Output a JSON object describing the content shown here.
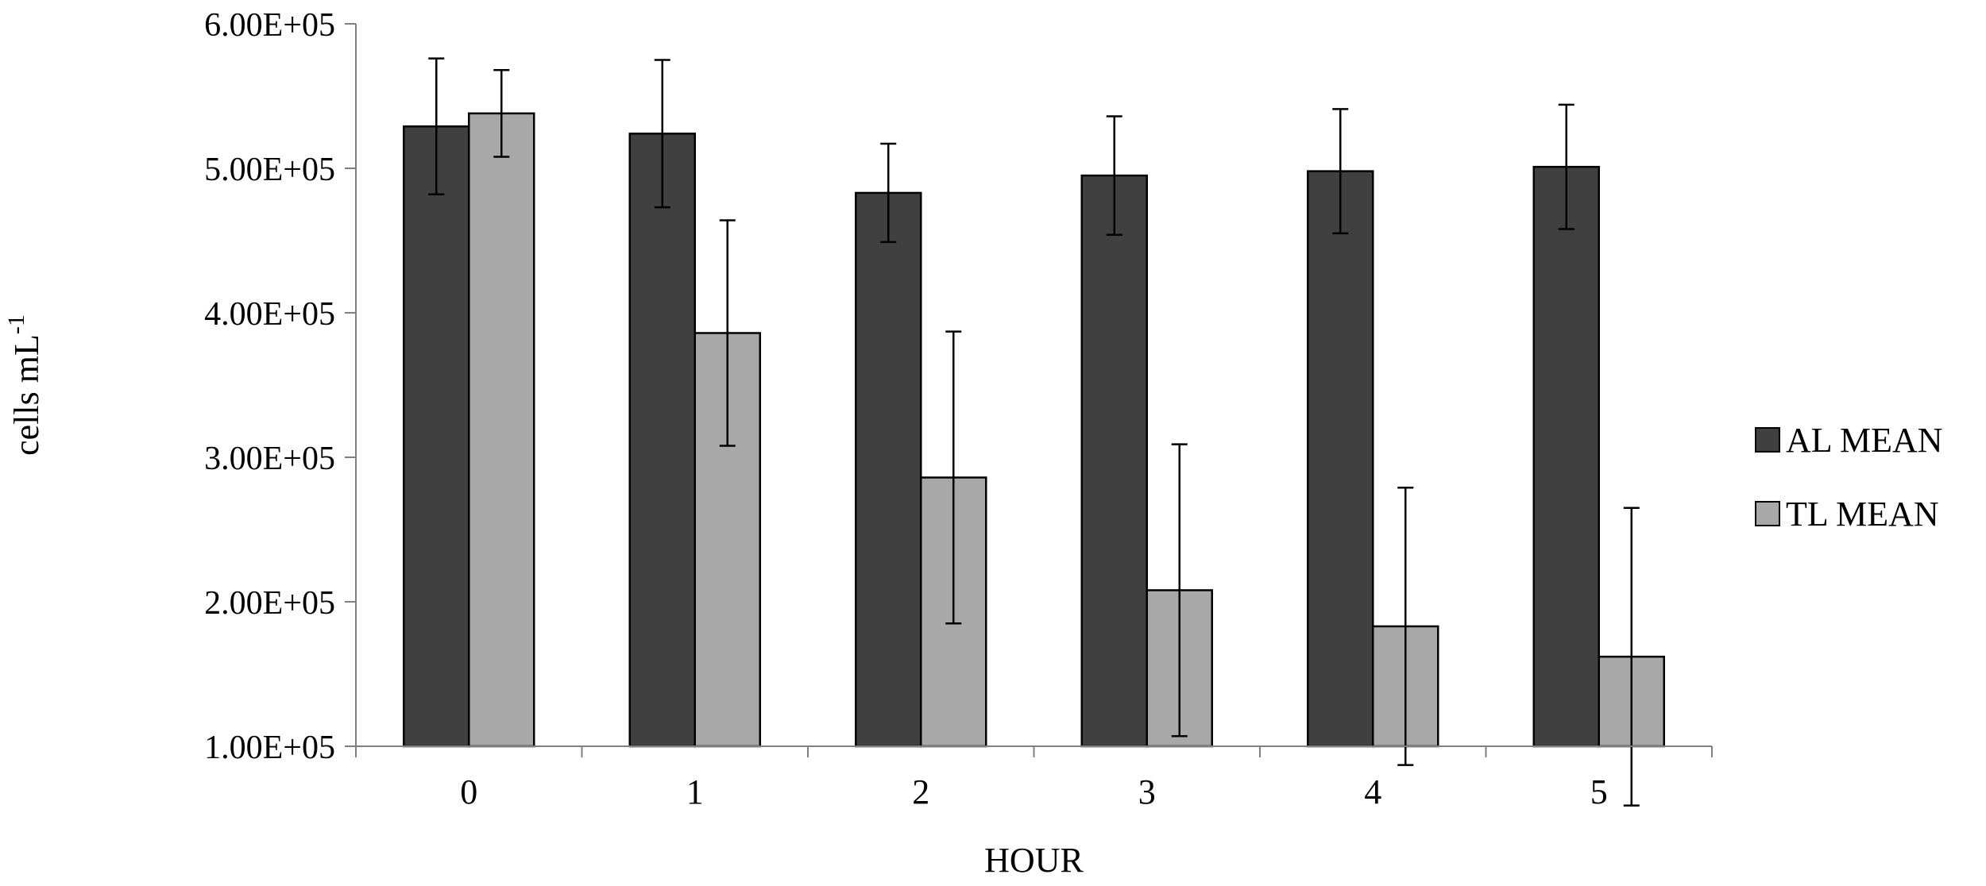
{
  "chart_data": {
    "type": "bar",
    "xlabel": "HOUR",
    "ylabel": "cells mL",
    "ylabel_superscript": "-1",
    "categories": [
      "0",
      "1",
      "2",
      "3",
      "4",
      "5"
    ],
    "ylim": [
      100000,
      600000
    ],
    "yticks": [
      100000,
      200000,
      300000,
      400000,
      500000,
      600000
    ],
    "ytick_labels": [
      "1.00E+05",
      "2.00E+05",
      "3.00E+05",
      "4.00E+05",
      "5.00E+05",
      "6.00E+05"
    ],
    "grid": false,
    "legend_position": "right",
    "series": [
      {
        "name": "AL MEAN",
        "color": "#404040",
        "values": [
          529000,
          524000,
          483000,
          495000,
          498000,
          501000
        ],
        "error": [
          47000,
          51000,
          34000,
          41000,
          43000,
          43000
        ]
      },
      {
        "name": "TL MEAN",
        "color": "#a8a8a8",
        "values": [
          538000,
          386000,
          286000,
          208000,
          183000,
          162000
        ],
        "error": [
          30000,
          78000,
          101000,
          101000,
          96000,
          103000
        ]
      }
    ]
  }
}
